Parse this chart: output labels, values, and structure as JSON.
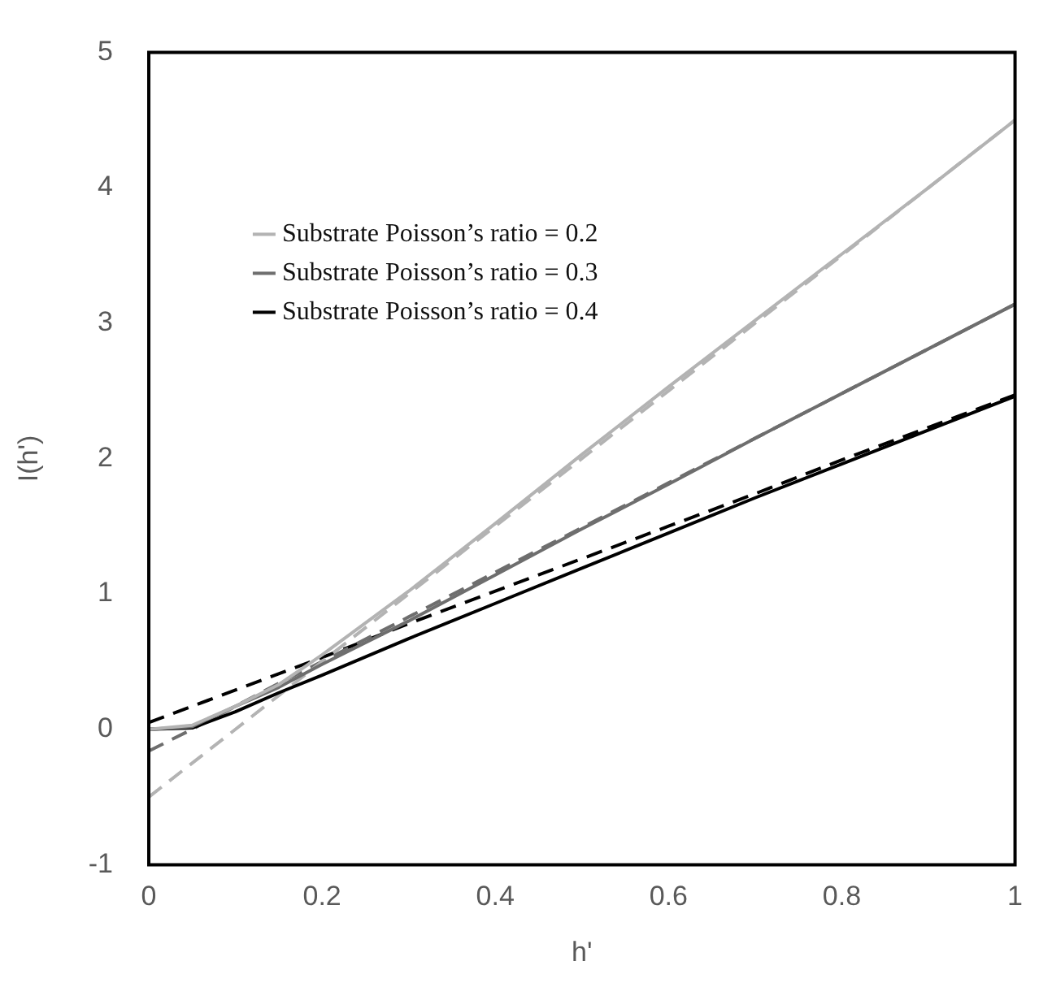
{
  "chart_data": {
    "type": "line",
    "xlabel": "h'",
    "ylabel": "I(h')",
    "xlim": [
      0,
      1
    ],
    "ylim": [
      -1,
      5
    ],
    "xticks": [
      0,
      0.2,
      0.4,
      0.6,
      0.8,
      1
    ],
    "yticks": [
      -1,
      0,
      1,
      2,
      3,
      4,
      5
    ],
    "grid": false,
    "legend": "top left",
    "marker": "none",
    "x": [
      0,
      0.05,
      0.1,
      0.15,
      0.2,
      0.3,
      0.4,
      0.5,
      0.6,
      0.7,
      0.8,
      0.9,
      1
    ],
    "series": [
      {
        "name": "Substrate Poisson’s ratio = 0.2",
        "color": "#b3b3b3",
        "line_style": "solid",
        "values": [
          0,
          0.03,
          0.17,
          0.33,
          0.55,
          1.02,
          1.52,
          2.03,
          2.53,
          3.02,
          3.51,
          4.0,
          4.5
        ]
      },
      {
        "name": "Substrate Poisson’s ratio = 0.3",
        "color": "#6e6e6e",
        "line_style": "solid",
        "values": [
          0,
          0.02,
          0.17,
          0.31,
          0.48,
          0.8,
          1.14,
          1.48,
          1.81,
          2.15,
          2.48,
          2.81,
          3.14
        ]
      },
      {
        "name": "Substrate Poisson’s ratio = 0.4",
        "color": "#000000",
        "line_style": "solid",
        "values": [
          0,
          0.01,
          0.13,
          0.27,
          0.4,
          0.67,
          0.93,
          1.19,
          1.45,
          1.71,
          1.96,
          2.21,
          2.46
        ]
      },
      {
        "color": "#b3b3b3",
        "line_style": "dashed",
        "values": [
          -0.5,
          -0.25,
          0,
          0.25,
          0.5,
          1,
          1.5,
          2,
          2.5,
          3,
          3.5,
          4,
          4.5
        ]
      },
      {
        "color": "#6e6e6e",
        "line_style": "dashed",
        "values": [
          -0.16,
          0.0,
          0.17,
          0.34,
          0.5,
          0.83,
          1.16,
          1.49,
          1.82,
          2.15,
          2.48,
          2.81,
          3.14
        ]
      },
      {
        "color": "#000000",
        "line_style": "dashed",
        "values": [
          0.05,
          0.17,
          0.29,
          0.41,
          0.53,
          0.78,
          1.02,
          1.26,
          1.5,
          1.74,
          1.99,
          2.23,
          2.47
        ]
      }
    ]
  }
}
